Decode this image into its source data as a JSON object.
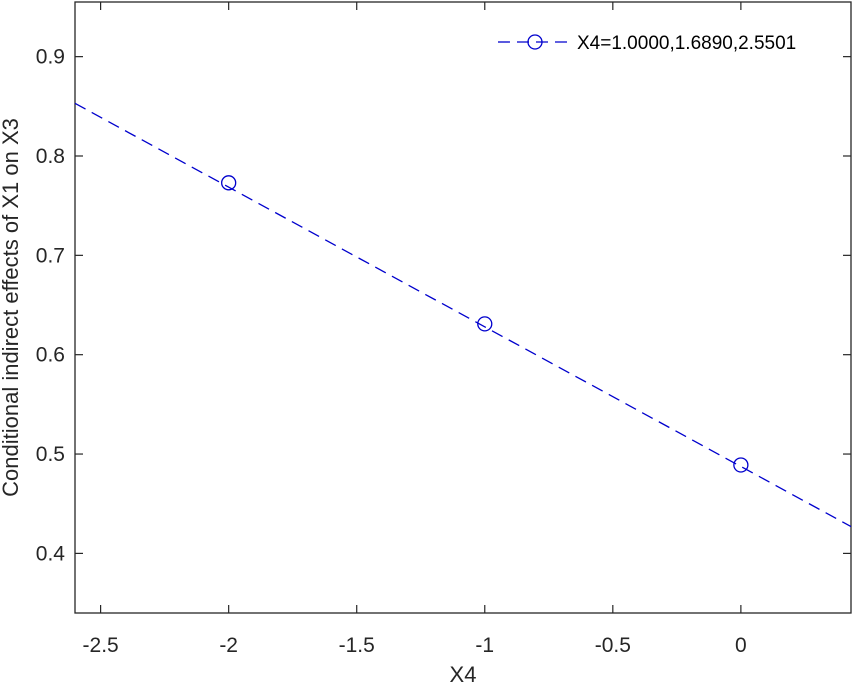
{
  "chart_data": {
    "type": "line",
    "xlabel": "X4",
    "ylabel": "Conditional indirect effects of X1 on X3",
    "xlim": [
      -2.6,
      0.43
    ],
    "ylim": [
      0.34,
      0.955
    ],
    "x_ticks": [
      -2.5,
      -2,
      -1.5,
      -1,
      -0.5,
      0
    ],
    "x_tick_labels": [
      "-2.5",
      "-2",
      "-1.5",
      "-1",
      "-0.5",
      "0"
    ],
    "y_ticks": [
      0.4,
      0.5,
      0.6,
      0.7,
      0.8,
      0.9
    ],
    "y_tick_labels": [
      "0.4",
      "0.5",
      "0.6",
      "0.7",
      "0.8",
      "0.9"
    ],
    "grid": false,
    "legend_position": "top-right",
    "series": [
      {
        "name": "X4=1.0000,1.6890,2.5501",
        "color": "#0000cd",
        "line_style": "dashed",
        "marker": "circle",
        "line": {
          "x": [
            -2.6,
            0.43
          ],
          "y": [
            0.853,
            0.427
          ]
        },
        "points": {
          "x": [
            -2,
            -1,
            0
          ],
          "y": [
            0.773,
            0.631,
            0.489
          ]
        }
      }
    ]
  }
}
